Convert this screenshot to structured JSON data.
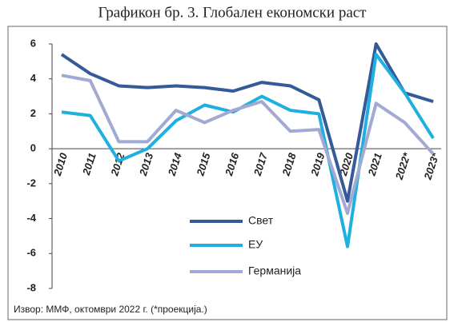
{
  "chart_data": {
    "type": "line",
    "title": "Графикон бр. 3. Глобален економски раст",
    "source": "Извор: ММФ, октомври 2022 г. (*проекција.)",
    "categories": [
      "2010",
      "2011",
      "2012",
      "2013",
      "2014",
      "2015",
      "2016",
      "2017",
      "2018",
      "2019",
      "2020",
      "2021",
      "2022*",
      "2023*"
    ],
    "series": [
      {
        "name": "Свет",
        "color": "#355a98",
        "values": [
          5.4,
          4.3,
          3.6,
          3.5,
          3.6,
          3.5,
          3.3,
          3.8,
          3.6,
          2.8,
          -3.0,
          6.0,
          3.2,
          2.7
        ]
      },
      {
        "name": "ЕУ",
        "color": "#1fb0e0",
        "values": [
          2.1,
          1.9,
          -0.7,
          0.0,
          1.6,
          2.5,
          2.1,
          3.0,
          2.2,
          2.0,
          -5.6,
          5.4,
          3.2,
          0.6
        ]
      },
      {
        "name": "Германија",
        "color": "#a2a9d2",
        "values": [
          4.2,
          3.9,
          0.4,
          0.4,
          2.2,
          1.5,
          2.2,
          2.7,
          1.0,
          1.1,
          -3.7,
          2.6,
          1.5,
          -0.3
        ]
      }
    ],
    "ylim": [
      -8,
      6
    ],
    "yticks": [
      -8,
      -6,
      -4,
      -2,
      0,
      2,
      4,
      6
    ]
  }
}
